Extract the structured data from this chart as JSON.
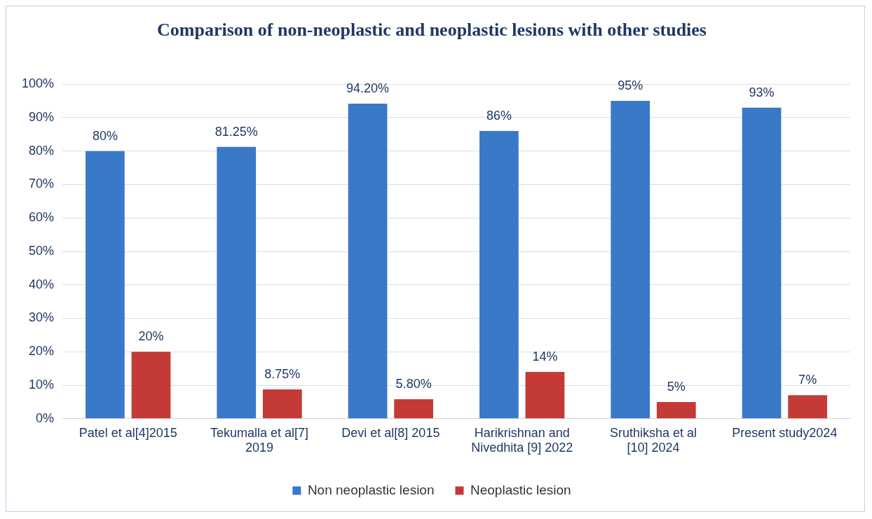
{
  "chart_data": {
    "type": "bar",
    "title": "Comparison of non-neoplastic and neoplastic lesions with other studies",
    "categories": [
      "Patel et al[4]2015",
      "Tekumalla et al[7] 2019",
      "Devi et al[8] 2015",
      "Harikrishnan and Nivedhita [9] 2022",
      "Sruthiksha et al [10] 2024",
      "Present study2024"
    ],
    "series": [
      {
        "name": "Non neoplastic lesion",
        "color": "#3a78c8",
        "values": [
          80,
          81.25,
          94.2,
          86,
          95,
          93
        ],
        "value_labels": [
          "80%",
          "81.25%",
          "94.20%",
          "86%",
          "95%",
          "93%"
        ]
      },
      {
        "name": "Neoplastic lesion",
        "color": "#c43a36",
        "values": [
          20,
          8.75,
          5.8,
          14,
          5,
          7
        ],
        "value_labels": [
          "20%",
          "8.75%",
          "5.80%",
          "14%",
          "5%",
          "7%"
        ]
      }
    ],
    "ylim": [
      0,
      100
    ],
    "yticks": [
      {
        "value": 0,
        "label": "0%"
      },
      {
        "value": 10,
        "label": "10%"
      },
      {
        "value": 20,
        "label": "20%"
      },
      {
        "value": 30,
        "label": "30%"
      },
      {
        "value": 40,
        "label": "40%"
      },
      {
        "value": 50,
        "label": "50%"
      },
      {
        "value": 60,
        "label": "60%"
      },
      {
        "value": 70,
        "label": "70%"
      },
      {
        "value": 80,
        "label": "80%"
      },
      {
        "value": 90,
        "label": "90%"
      },
      {
        "value": 100,
        "label": "100%"
      }
    ],
    "grid": "y",
    "legend": "bottom"
  }
}
